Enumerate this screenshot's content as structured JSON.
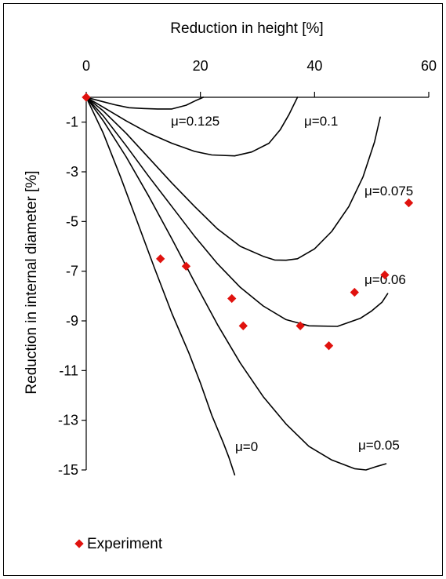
{
  "chart_data": {
    "type": "line",
    "title": "",
    "xlabel": "Reduction in height [%]",
    "ylabel": "Reduction in internal diameter [%]",
    "xlim": [
      0,
      60
    ],
    "ylim": [
      -15,
      0
    ],
    "x_ticks": [
      "0",
      "20",
      "40",
      "60"
    ],
    "y_ticks": [
      "-1",
      "-3",
      "-5",
      "-7",
      "-9",
      "-11",
      "-13",
      "-15"
    ],
    "x_axis_position": "top",
    "grid": false,
    "series": [
      {
        "name": "μ=0.125",
        "color": "#000000",
        "points": [
          [
            0,
            0
          ],
          [
            2.5,
            -0.15
          ],
          [
            5,
            -0.3
          ],
          [
            7.5,
            -0.42
          ],
          [
            10,
            -0.45
          ],
          [
            12.5,
            -0.47
          ],
          [
            15,
            -0.47
          ],
          [
            17.5,
            -0.32
          ],
          [
            19,
            -0.15
          ],
          [
            20.5,
            0
          ]
        ]
      },
      {
        "name": "μ=0.1",
        "color": "#000000",
        "points": [
          [
            0,
            0
          ],
          [
            3,
            -0.4
          ],
          [
            7,
            -0.95
          ],
          [
            11,
            -1.45
          ],
          [
            15,
            -1.85
          ],
          [
            19,
            -2.18
          ],
          [
            22,
            -2.32
          ],
          [
            26,
            -2.36
          ],
          [
            29,
            -2.2
          ],
          [
            32,
            -1.85
          ],
          [
            34,
            -1.3
          ],
          [
            35.5,
            -0.7
          ],
          [
            37,
            0
          ]
        ]
      },
      {
        "name": "μ=0.075",
        "color": "#000000",
        "points": [
          [
            0,
            0
          ],
          [
            3,
            -0.55
          ],
          [
            7,
            -1.45
          ],
          [
            11,
            -2.45
          ],
          [
            15,
            -3.45
          ],
          [
            19,
            -4.4
          ],
          [
            23,
            -5.3
          ],
          [
            27,
            -6
          ],
          [
            31,
            -6.4
          ],
          [
            33,
            -6.55
          ],
          [
            35,
            -6.56
          ],
          [
            37,
            -6.5
          ],
          [
            40,
            -6.1
          ],
          [
            43,
            -5.4
          ],
          [
            46,
            -4.4
          ],
          [
            48.5,
            -3.2
          ],
          [
            50.5,
            -1.8
          ],
          [
            51.5,
            -0.8
          ]
        ]
      },
      {
        "name": "μ=0.06",
        "color": "#000000",
        "points": [
          [
            0,
            0
          ],
          [
            3,
            -0.75
          ],
          [
            7,
            -1.95
          ],
          [
            11,
            -3.2
          ],
          [
            15,
            -4.4
          ],
          [
            19,
            -5.6
          ],
          [
            23,
            -6.7
          ],
          [
            27,
            -7.65
          ],
          [
            31,
            -8.4
          ],
          [
            35,
            -8.95
          ],
          [
            39,
            -9.2
          ],
          [
            44,
            -9.22
          ],
          [
            48,
            -8.9
          ],
          [
            50,
            -8.6
          ],
          [
            51.8,
            -8.25
          ],
          [
            52.8,
            -7.9
          ]
        ]
      },
      {
        "name": "μ=0.05",
        "color": "#000000",
        "points": [
          [
            0,
            0
          ],
          [
            3,
            -0.95
          ],
          [
            7,
            -2.4
          ],
          [
            11,
            -4
          ],
          [
            15,
            -5.7
          ],
          [
            19,
            -7.45
          ],
          [
            23,
            -9.15
          ],
          [
            27,
            -10.7
          ],
          [
            31,
            -12.05
          ],
          [
            35,
            -13.15
          ],
          [
            39,
            -14.05
          ],
          [
            43,
            -14.6
          ],
          [
            47,
            -14.95
          ],
          [
            49,
            -15
          ],
          [
            51,
            -14.85
          ],
          [
            52.5,
            -14.75
          ]
        ]
      },
      {
        "name": "μ=0",
        "color": "#000000",
        "points": [
          [
            0,
            0
          ],
          [
            3,
            -1.45
          ],
          [
            6,
            -3.2
          ],
          [
            9,
            -5.05
          ],
          [
            12,
            -6.9
          ],
          [
            15,
            -8.7
          ],
          [
            18,
            -10.3
          ],
          [
            20,
            -11.5
          ],
          [
            22,
            -12.8
          ],
          [
            24,
            -13.9
          ],
          [
            25,
            -14.5
          ],
          [
            26,
            -15.2
          ]
        ]
      }
    ],
    "experiment": {
      "name": "Experiment",
      "color": "#e0120e",
      "points": [
        [
          0,
          0
        ],
        [
          13,
          -6.5
        ],
        [
          17.5,
          -6.8
        ],
        [
          25.5,
          -8.1
        ],
        [
          27.5,
          -9.2
        ],
        [
          37.5,
          -9.2
        ],
        [
          42.5,
          -10
        ],
        [
          47,
          -7.85
        ],
        [
          52.3,
          -7.15
        ],
        [
          56.5,
          -4.25
        ]
      ]
    },
    "legend": {
      "entries": [
        "Experiment"
      ],
      "position": "bottom-left"
    }
  }
}
